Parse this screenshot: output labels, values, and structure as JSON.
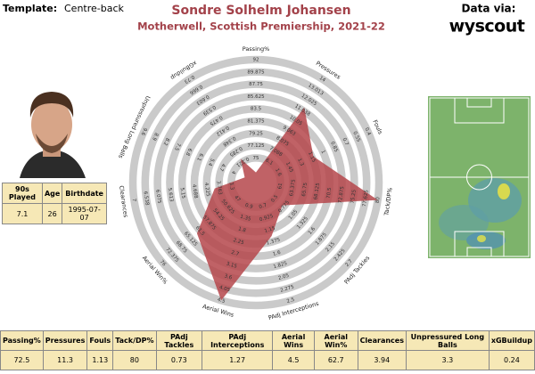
{
  "template": {
    "label": "Template:",
    "value": "Centre-back"
  },
  "source": {
    "label": "Data via:",
    "name": "wyscout"
  },
  "profile": {
    "headers": [
      "90s Played",
      "Age",
      "Birthdate"
    ],
    "values": [
      7.1,
      26,
      "1995-07-07"
    ]
  },
  "chart_data": {
    "type": "radar",
    "title": "Sondre Solhelm Johansen",
    "subtitle": "Motherwell, Scottish Premiership, 2021-22",
    "color": "#b5474b",
    "axes": [
      {
        "name": "Passing%",
        "range": [
          70.75,
          92
        ],
        "ticks": [
          92,
          89.875,
          87.75,
          85.625,
          83.5,
          81.375,
          79.25,
          77.125,
          75
        ],
        "value": 72.5
      },
      {
        "name": "Pressures",
        "range": [
          4.125,
          14
        ],
        "ticks": [
          14,
          13.013,
          12.025,
          11.038,
          10.05,
          9.063,
          8.075,
          7.088,
          6.1
        ],
        "value": 11.3
      },
      {
        "name": "Fouls",
        "range": [
          1.9,
          0.4
        ],
        "ticks": [
          0.4,
          0.55,
          0.7,
          0.85,
          1,
          1.15,
          1.3,
          1.45,
          1.6
        ],
        "value": 1.13
      },
      {
        "name": "Tack/DP%",
        "range": [
          56.25,
          80
        ],
        "ticks": [
          80,
          77.625,
          75.25,
          72.875,
          70.5,
          68.125,
          65.75,
          63.375,
          61
        ],
        "value": 80
      },
      {
        "name": "PAdj Tackles",
        "range": [
          -0.05,
          2.7
        ],
        "ticks": [
          2.7,
          2.425,
          2.15,
          1.875,
          1.6,
          1.325,
          1.05,
          0.775,
          0.5
        ],
        "value": 0.73
      },
      {
        "name": "PAdj Interceptions",
        "range": [
          0.25,
          2.5
        ],
        "ticks": [
          2.5,
          2.275,
          2.05,
          1.825,
          1.6,
          1.375,
          1.15,
          0.925,
          0.7
        ],
        "value": 1.27
      },
      {
        "name": "Aerial Wins",
        "range": [
          0,
          4.5
        ],
        "ticks": [
          4.5,
          4.05,
          3.6,
          3.15,
          2.7,
          2.25,
          1.8,
          1.35,
          0.9
        ],
        "value": 4.5
      },
      {
        "name": "Aerial Win%",
        "range": [
          39.75,
          76
        ],
        "ticks": [
          76,
          72.375,
          68.75,
          65.125,
          61.5,
          57.875,
          54.25,
          50.625,
          47
        ],
        "value": 62.7
      },
      {
        "name": "Clearances",
        "range": [
          2.375,
          7
        ],
        "ticks": [
          7,
          6.538,
          6.075,
          5.613,
          5.15,
          4.688,
          4.225,
          3.763,
          3.3
        ],
        "value": 3.94
      },
      {
        "name": "Unpressured Long Balls",
        "range": [
          2.6,
          9.6
        ],
        "ticks": [
          9.6,
          8.9,
          8.2,
          7.5,
          6.8,
          6.1,
          5.4,
          4.7,
          4
        ],
        "value": 3.3
      },
      {
        "name": "xGBuildup",
        "range": [
          0.094,
          0.73
        ],
        "ticks": [
          0.73,
          0.666,
          0.603,
          0.539,
          0.475,
          0.412,
          0.348,
          0.285,
          0.221
        ],
        "value": 0.24
      }
    ]
  }
}
